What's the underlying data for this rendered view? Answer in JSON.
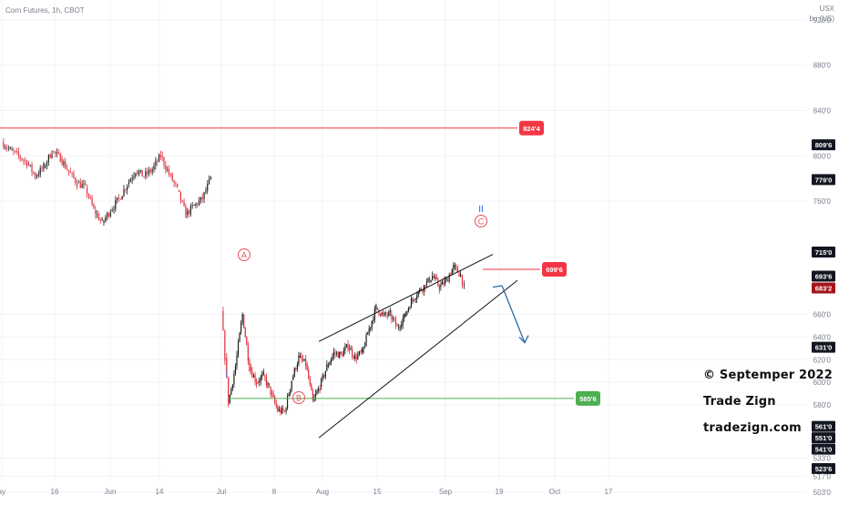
{
  "header": {
    "title": "Corn Futures, 1h, CBOT",
    "unit_line1": "USX",
    "unit_line2": "bu (US)"
  },
  "watermark": {
    "line1": "© Septemper 2022",
    "line2": "Trade Zign",
    "line3": "tradezign.com"
  },
  "colors": {
    "up": "#26a69a",
    "down": "#ef5350",
    "red_line": "#f23645",
    "green_line": "#4caf50",
    "arrow": "#2a6ea8",
    "label_black": "#131722",
    "label_red": "#f23645",
    "label_green": "#4caf50",
    "label_maroon": "#a2161b",
    "wave_label": "#e8505b",
    "wave_blue": "#2962ff"
  },
  "chart_data": {
    "type": "candlestick",
    "title": "Corn Futures, 1h, CBOT",
    "ylabel": "USX bu (US)",
    "ylim": [
      496,
      945
    ],
    "y_ticks": [
      "920'0",
      "880'0",
      "840'0",
      "800'0",
      "760'0",
      "660'0",
      "640'0",
      "620'0",
      "600'0",
      "580'0",
      "533'0",
      "517'0",
      "503'0"
    ],
    "x_ticks": [
      "ay",
      "16",
      "Jun",
      "14",
      "Jul",
      "8",
      "Aug",
      "15",
      "Sep",
      "19",
      "Oct",
      "17"
    ],
    "horizontal_levels": [
      {
        "label": "824'4",
        "value": 824.5,
        "color": "red"
      },
      {
        "label": "699'6",
        "value": 699.75,
        "color": "red"
      },
      {
        "label": "585'6",
        "value": 585.75,
        "color": "green"
      }
    ],
    "price_labels": [
      {
        "label": "809'6",
        "value": 809.75,
        "style": "black"
      },
      {
        "label": "779'0",
        "value": 779.0,
        "style": "black"
      },
      {
        "label": "715'0",
        "value": 715.0,
        "style": "black"
      },
      {
        "label": "693'6",
        "value": 693.75,
        "style": "black"
      },
      {
        "label": "683'2",
        "value": 683.25,
        "style": "maroon"
      },
      {
        "label": "631'0",
        "value": 631.0,
        "style": "black"
      },
      {
        "label": "561'0",
        "value": 561.0,
        "style": "black"
      },
      {
        "label": "551'0",
        "value": 551.0,
        "style": "black"
      },
      {
        "label": "541'0",
        "value": 541.0,
        "style": "black"
      },
      {
        "label": "523'6",
        "value": 523.75,
        "style": "black"
      }
    ],
    "wave_labels": [
      "A",
      "B",
      "C",
      "I",
      "II"
    ],
    "close_path": [
      [
        "May-10",
        812
      ],
      [
        "May-12",
        805
      ],
      [
        "May-14",
        800
      ],
      [
        "May-16",
        794
      ],
      [
        "May-18",
        782
      ],
      [
        "May-20",
        790
      ],
      [
        "May-22",
        804
      ],
      [
        "May-24",
        798
      ],
      [
        "May-26",
        786
      ],
      [
        "May-28",
        776
      ],
      [
        "May-30",
        772
      ],
      [
        "Jun-01",
        752
      ],
      [
        "Jun-03",
        741
      ],
      [
        "Jun-05",
        752
      ],
      [
        "Jun-07",
        762
      ],
      [
        "Jun-09",
        775
      ],
      [
        "Jun-11",
        787
      ],
      [
        "Jun-13",
        782
      ],
      [
        "Jun-15",
        788
      ],
      [
        "Jun-17",
        800
      ],
      [
        "Jun-19",
        784
      ],
      [
        "Jun-21",
        770
      ],
      [
        "Jun-23",
        748
      ],
      [
        "Jun-25",
        756
      ],
      [
        "Jun-27",
        762
      ],
      [
        "Jun-29",
        780
      ],
      [
        "Jul-01",
        663
      ],
      [
        "Jul-02",
        622
      ],
      [
        "Jul-03",
        582
      ],
      [
        "Jul-05",
        614
      ],
      [
        "Jul-07",
        660
      ],
      [
        "Jul-09",
        613
      ],
      [
        "Jul-11",
        600
      ],
      [
        "Jul-13",
        606
      ],
      [
        "Jul-15",
        591
      ],
      [
        "Jul-17",
        575
      ],
      [
        "Jul-19",
        574
      ],
      [
        "Jul-21",
        602
      ],
      [
        "Jul-23",
        622
      ],
      [
        "Jul-25",
        616
      ],
      [
        "Jul-27",
        583
      ],
      [
        "Jul-29",
        596
      ],
      [
        "Jul-31",
        614
      ],
      [
        "Aug-02",
        626
      ],
      [
        "Aug-04",
        624
      ],
      [
        "Aug-06",
        632
      ],
      [
        "Aug-08",
        622
      ],
      [
        "Aug-10",
        626
      ],
      [
        "Aug-12",
        647
      ],
      [
        "Aug-14",
        666
      ],
      [
        "Aug-16",
        659
      ],
      [
        "Aug-18",
        660
      ],
      [
        "Aug-20",
        648
      ],
      [
        "Aug-22",
        658
      ],
      [
        "Aug-24",
        672
      ],
      [
        "Aug-26",
        680
      ],
      [
        "Aug-28",
        686
      ],
      [
        "Aug-30",
        694
      ],
      [
        "Sep-01",
        684
      ],
      [
        "Sep-03",
        690
      ],
      [
        "Sep-05",
        702
      ],
      [
        "Sep-07",
        695
      ],
      [
        "Sep-08",
        683
      ]
    ],
    "projection_arrow": [
      [
        "Sep-09",
        683
      ],
      [
        "Sep-12",
        635
      ]
    ]
  }
}
